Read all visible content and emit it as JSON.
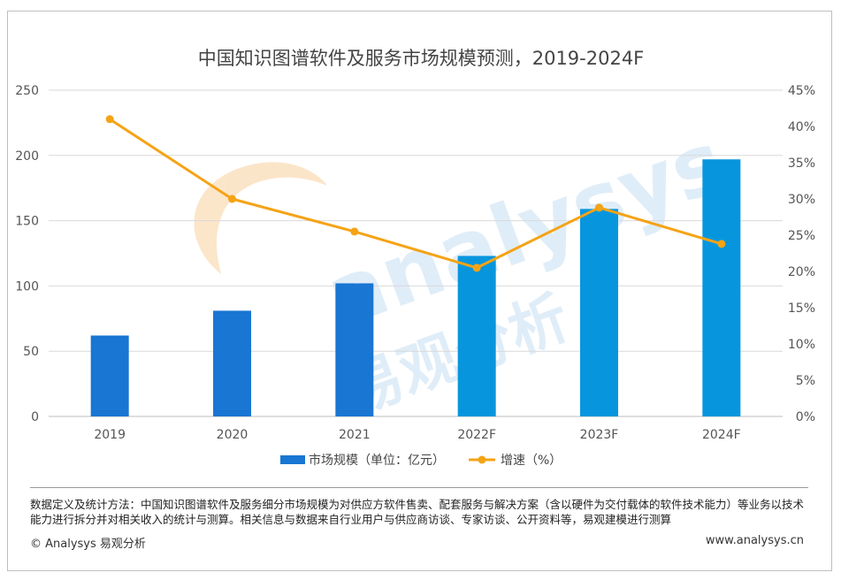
{
  "chart_data": {
    "type": "bar",
    "title": "中国知识图谱软件及服务市场规模预测，2019-2024F",
    "categories": [
      "2019",
      "2020",
      "2021",
      "2022F",
      "2023F",
      "2024F"
    ],
    "series": [
      {
        "name": "市场规模（单位：亿元）",
        "type": "bar",
        "axis": "left",
        "values": [
          62,
          81,
          102,
          123,
          159,
          197
        ],
        "colors": [
          "#1976d2",
          "#1976d2",
          "#1976d2",
          "#0796de",
          "#0796de",
          "#0796de"
        ]
      },
      {
        "name": "增速（%）",
        "type": "line",
        "axis": "right",
        "values": [
          41,
          30,
          25.5,
          20.5,
          28.8,
          23.8
        ],
        "color": "#f5a316"
      }
    ],
    "y_left": {
      "min": 0,
      "max": 250,
      "ticks": [
        0,
        50,
        100,
        150,
        200,
        250
      ]
    },
    "y_right": {
      "min": 0,
      "max": 45,
      "ticks": [
        "0%",
        "5%",
        "10%",
        "15%",
        "20%",
        "25%",
        "30%",
        "35%",
        "40%",
        "45%"
      ]
    },
    "grid": true,
    "legend_position": "bottom"
  },
  "watermark": {
    "brand": "analysys",
    "brand_cn": "易观分析"
  },
  "note": "数据定义及统计方法：中国知识图谱软件及服务细分市场规模为对供应方软件售卖、配套服务与解决方案（含以硬件为交付载体的软件技术能力）等业务以技术能力进行拆分并对相关收入的统计与测算。相关信息与数据来自行业用户与供应商访谈、专家访谈、公开资料等，易观建模进行测算",
  "footer": {
    "left": "© Analysys 易观分析",
    "right": "www.analysys.cn"
  }
}
